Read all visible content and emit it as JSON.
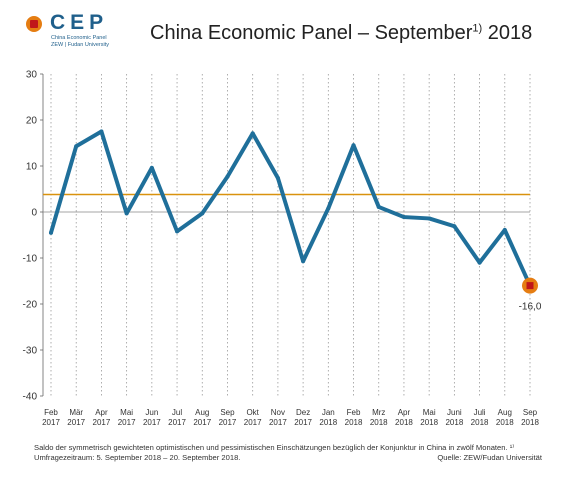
{
  "header": {
    "logo_text": "CEP",
    "logo_subline1": "China Economic Panel",
    "logo_subline2": "ZEW | Fudan University",
    "title": "China Economic Panel – September",
    "title_sup": "1)",
    "title_year": "2018"
  },
  "chart_data": {
    "type": "line",
    "categories": [
      "Feb 2017",
      "Mär 2017",
      "Apr 2017",
      "Mai 2017",
      "Jun 2017",
      "Jul 2017",
      "Aug 2017",
      "Sep 2017",
      "Okt 2017",
      "Nov 2017",
      "Dez 2017",
      "Jan 2018",
      "Feb 2018",
      "Mrz 2018",
      "Apr 2018",
      "Mai 2018",
      "Juni 2018",
      "Juli 2018",
      "Aug 2018",
      "Sep 2018"
    ],
    "month_labels": [
      "Feb",
      "Mär",
      "Apr",
      "Mai",
      "Jun",
      "Jul",
      "Aug",
      "Sep",
      "Okt",
      "Nov",
      "Dez",
      "Jan",
      "Feb",
      "Mrz",
      "Apr",
      "Mai",
      "Juni",
      "Juli",
      "Aug",
      "Sep"
    ],
    "year_labels": [
      "2017",
      "2017",
      "2017",
      "2017",
      "2017",
      "2017",
      "2017",
      "2017",
      "2017",
      "2017",
      "2017",
      "2018",
      "2018",
      "2018",
      "2018",
      "2018",
      "2018",
      "2018",
      "2018",
      "2018"
    ],
    "series": [
      {
        "values": [
          -4.5,
          14.3,
          17.5,
          -0.3,
          9.6,
          -4.2,
          -0.3,
          7.7,
          17.1,
          7.4,
          -10.7,
          0.8,
          14.5,
          1.1,
          -1.1,
          -1.4,
          -3.1,
          -11.0,
          -3.9,
          -16.0
        ],
        "color": "#1f6f9a"
      }
    ],
    "reference_line": {
      "value": 3.8,
      "color": "#d9920e"
    },
    "highlight": {
      "index": 19,
      "label": "-16,0"
    },
    "ylim": [
      -40,
      30
    ],
    "yticks": [
      30,
      20,
      10,
      0,
      -10,
      -20,
      -30,
      -40
    ],
    "ytick_labels": [
      "30",
      "20",
      "10",
      "0",
      "-10",
      "-20",
      "-30",
      "-40"
    ],
    "grid": "vertical dotted"
  },
  "footer": {
    "note": "Saldo der symmetrisch gewichteten optimistischen und pessimistischen Einschätzungen bezüglich der Konjunktur in China in zwölf Monaten. ¹⁾ Umfragezeitraum: 5. September 2018 – 20. September 2018.",
    "source": "Quelle: ZEW/Fudan Universität"
  }
}
